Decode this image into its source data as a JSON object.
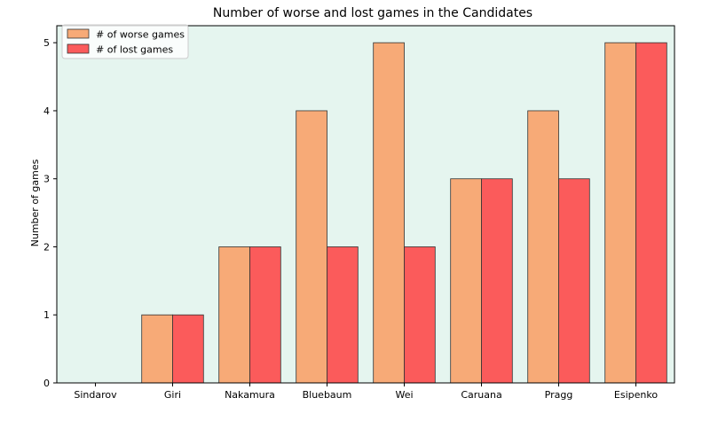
{
  "chart_data": {
    "type": "bar",
    "title": "Number of worse and lost games in the Candidates",
    "xlabel": "",
    "ylabel": "Number of games",
    "categories": [
      "Sindarov",
      "Giri",
      "Nakamura",
      "Bluebaum",
      "Wei",
      "Caruana",
      "Pragg",
      "Esipenko"
    ],
    "series": [
      {
        "name": "# of worse games",
        "values": [
          0,
          1,
          2,
          4,
          5,
          3,
          4,
          5
        ],
        "color": "#f7aa77"
      },
      {
        "name": "# of lost games",
        "values": [
          0,
          1,
          2,
          2,
          2,
          3,
          3,
          5
        ],
        "color": "#fb5b5b"
      }
    ],
    "ylim": [
      0,
      5.25
    ],
    "yticks": [
      0,
      1,
      2,
      3,
      4,
      5
    ],
    "grid": false,
    "legend_position": "top-left",
    "plot_background": "#e5f5ef"
  }
}
